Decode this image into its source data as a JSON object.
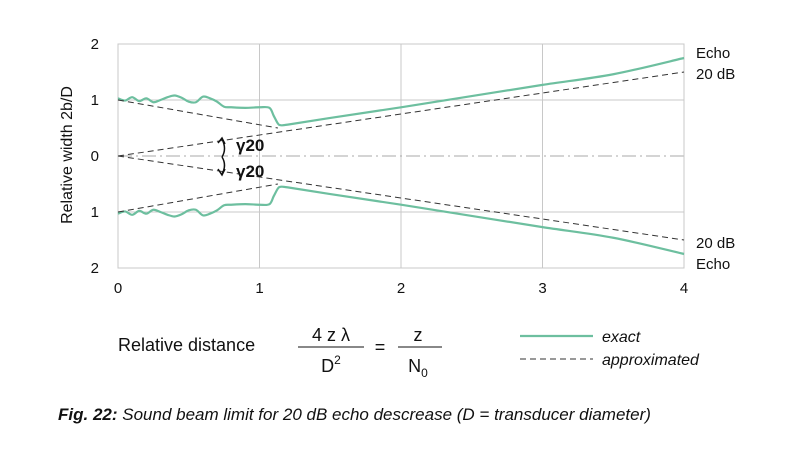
{
  "chart_data": {
    "type": "line",
    "xlabel": "",
    "ylabel": "Relative width  2b/D",
    "xlim": [
      0,
      4
    ],
    "ylim": [
      -2,
      2
    ],
    "x_ticks": [
      "0",
      "1",
      "2",
      "3",
      "4"
    ],
    "y_ticks": [
      "2",
      "1",
      "0",
      "1",
      "2"
    ],
    "grid": true,
    "centerline": true,
    "colors": {
      "exact": "#6dbf9f",
      "approximated": "#333333",
      "grid": "#c8c8c8",
      "axis": "#555555"
    },
    "series": [
      {
        "name": "exact",
        "style": "solid",
        "branch": "upper",
        "x": [
          0,
          0.05,
          0.1,
          0.15,
          0.2,
          0.25,
          0.3,
          0.35,
          0.4,
          0.45,
          0.5,
          0.55,
          0.6,
          0.65,
          0.7,
          0.75,
          0.8,
          0.9,
          1.0,
          1.07,
          1.1,
          1.13,
          1.15,
          1.2,
          1.5,
          2.0,
          2.5,
          3.0,
          3.5,
          4.0
        ],
        "y": [
          1.03,
          0.99,
          1.05,
          0.98,
          1.03,
          0.96,
          1.0,
          1.05,
          1.08,
          1.04,
          0.97,
          0.96,
          1.06,
          1.03,
          0.97,
          0.88,
          0.87,
          0.86,
          0.87,
          0.86,
          0.72,
          0.58,
          0.55,
          0.56,
          0.68,
          0.87,
          1.07,
          1.27,
          1.46,
          1.75
        ]
      },
      {
        "name": "exact",
        "style": "solid",
        "branch": "lower",
        "x": [
          0,
          0.05,
          0.1,
          0.15,
          0.2,
          0.25,
          0.3,
          0.35,
          0.4,
          0.45,
          0.5,
          0.55,
          0.6,
          0.65,
          0.7,
          0.75,
          0.8,
          0.9,
          1.0,
          1.07,
          1.1,
          1.13,
          1.15,
          1.2,
          1.5,
          2.0,
          2.5,
          3.0,
          3.5,
          4.0
        ],
        "y": [
          -1.03,
          -0.99,
          -1.05,
          -0.98,
          -1.03,
          -0.96,
          -1.0,
          -1.05,
          -1.08,
          -1.04,
          -0.97,
          -0.96,
          -1.06,
          -1.03,
          -0.97,
          -0.88,
          -0.87,
          -0.86,
          -0.87,
          -0.86,
          -0.72,
          -0.58,
          -0.55,
          -0.56,
          -0.68,
          -0.87,
          -1.07,
          -1.27,
          -1.46,
          -1.75
        ]
      },
      {
        "name": "approximated",
        "style": "dashed",
        "branch": "upper-near",
        "x": [
          0,
          1.13
        ],
        "y": [
          1.0,
          0.5
        ]
      },
      {
        "name": "approximated",
        "style": "dashed",
        "branch": "lower-near",
        "x": [
          0,
          1.13
        ],
        "y": [
          -1.0,
          -0.5
        ]
      },
      {
        "name": "approximated",
        "style": "dashed",
        "branch": "upper-far",
        "x": [
          0,
          4
        ],
        "y": [
          0,
          1.5
        ]
      },
      {
        "name": "approximated",
        "style": "dashed",
        "branch": "lower-far",
        "x": [
          0,
          4
        ],
        "y": [
          0,
          -1.5
        ]
      }
    ],
    "annotations": {
      "gamma_upper": "γ20",
      "gamma_lower": "γ20",
      "right_upper_1": "Echo",
      "right_upper_2": "20 dB",
      "right_lower_1": "20 dB",
      "right_lower_2": "Echo"
    }
  },
  "formula": {
    "label": "Relative distance",
    "num1": "4 z λ",
    "den1_base": "D",
    "den1_sup": "2",
    "equals": "=",
    "num2": "z",
    "den2_base": "N",
    "den2_sub": "0"
  },
  "legend": {
    "exact": "exact",
    "approximated": "approximated"
  },
  "caption": {
    "prefix": "Fig. 22:",
    "text": " Sound beam limit for 20 dB echo descrease (D = transducer diameter)"
  }
}
